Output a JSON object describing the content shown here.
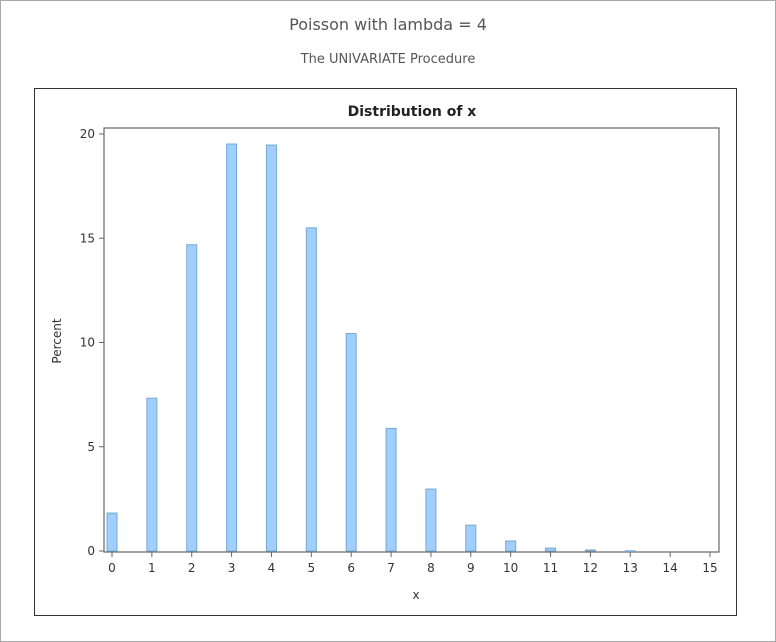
{
  "header": {
    "title": "Poisson with lambda = 4",
    "subtitle": "The UNIVARIATE Procedure"
  },
  "chart_data": {
    "type": "bar",
    "title": "Distribution of x",
    "xlabel": "x",
    "ylabel": "Percent",
    "categories": [
      0,
      1,
      2,
      3,
      4,
      5,
      6,
      7,
      8,
      9,
      10,
      11,
      12,
      13,
      14,
      15
    ],
    "values": [
      1.82,
      7.33,
      14.69,
      19.52,
      19.47,
      15.5,
      10.43,
      5.88,
      2.97,
      1.24,
      0.48,
      0.14,
      0.05,
      0.01,
      0,
      0
    ],
    "ylim": [
      0,
      20
    ],
    "yticks": [
      0,
      5,
      10,
      15,
      20
    ],
    "xticks": [
      "0",
      "1",
      "2",
      "3",
      "4",
      "5",
      "6",
      "7",
      "8",
      "9",
      "10",
      "11",
      "12",
      "13",
      "14",
      "15"
    ],
    "bar_color": "#9fcfff",
    "bar_edge": "#7aa7cf",
    "grid": false
  }
}
